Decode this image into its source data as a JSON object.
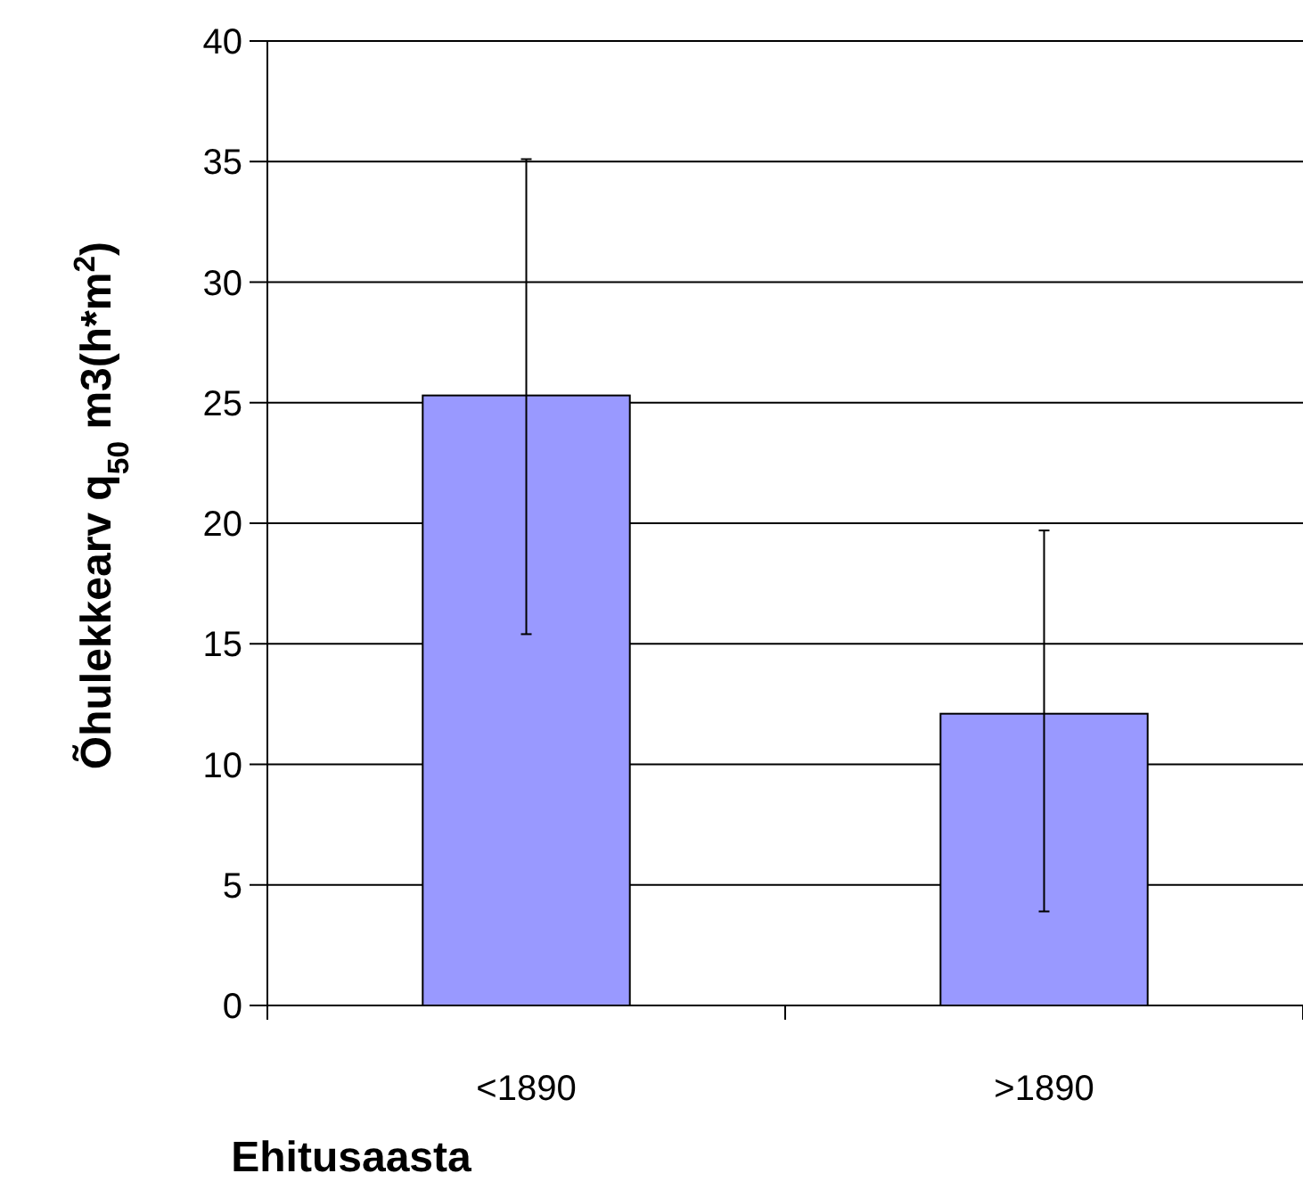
{
  "chart_data": {
    "type": "bar",
    "xlabel": "Ehitusaasta",
    "ylabel": "Õhulekkearv q$_{50}$ m3(h*m$^{2}$)",
    "categories": [
      "<1890",
      ">1890"
    ],
    "values": [
      25.3,
      12.1
    ],
    "errors": [
      [
        15.4,
        35.1
      ],
      [
        3.9,
        19.7
      ]
    ],
    "color": "#9999ff",
    "ylim": [
      0,
      40
    ],
    "yticks": [
      0,
      5,
      10,
      15,
      20,
      25,
      30,
      35,
      40
    ],
    "grid": "y"
  }
}
